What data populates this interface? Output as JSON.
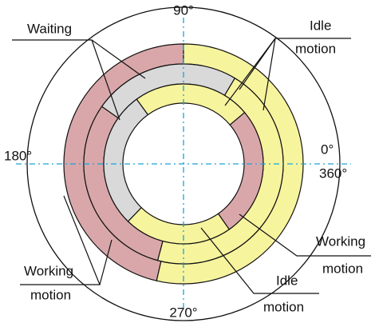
{
  "diagram": {
    "angles": {
      "top": "90°",
      "left": "180°",
      "right_zero": "0°",
      "right_full": "360°",
      "bottom": "270°"
    },
    "labels": {
      "waiting": "Waiting",
      "idle_top": [
        "Idle",
        "motion"
      ],
      "working_right": [
        "Working",
        "motion"
      ],
      "idle_bottom": [
        "Idle",
        "motion"
      ],
      "working_left": [
        "Working",
        "motion"
      ]
    }
  }
}
